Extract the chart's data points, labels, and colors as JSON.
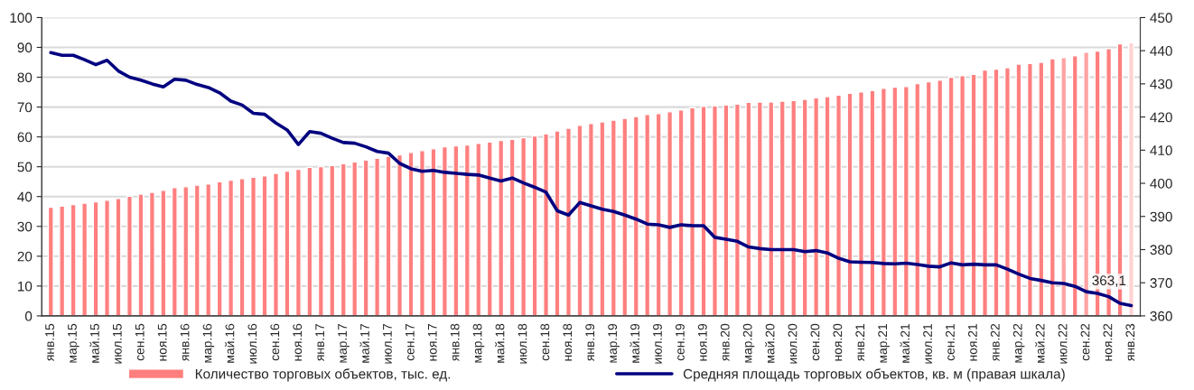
{
  "chart_data": {
    "type": "bar",
    "categories": [
      "янв.15",
      null,
      "мар.15",
      null,
      "май.15",
      null,
      "июл.15",
      null,
      "сен.15",
      null,
      "ноя.15",
      null,
      "янв.16",
      null,
      "мар.16",
      null,
      "май.16",
      null,
      "июл.16",
      null,
      "сен.16",
      null,
      "ноя.16",
      null,
      "янв.17",
      null,
      "мар.17",
      null,
      "май.17",
      null,
      "июл.17",
      null,
      "сен.17",
      null,
      "ноя.17",
      null,
      "янв.18",
      null,
      "мар.18",
      null,
      "май.18",
      null,
      "июл.18",
      null,
      "сен.18",
      null,
      "ноя.18",
      null,
      "янв.19",
      null,
      "мар.19",
      null,
      "май.19",
      null,
      "июл.19",
      null,
      "сен.19",
      null,
      "ноя.19",
      null,
      "янв.20",
      null,
      "мар.20",
      null,
      "май.20",
      null,
      "июл.20",
      null,
      "сен.20",
      null,
      "ноя.20",
      null,
      "янв.21",
      null,
      "мар.21",
      null,
      "май.21",
      null,
      "июл.21",
      null,
      "сен.21",
      null,
      "ноя.21",
      null,
      "янв.22",
      null,
      "мар.22",
      null,
      "май.22",
      null,
      "июл.22",
      null,
      "сен.22",
      null,
      "ноя.22",
      null,
      "янв.23"
    ],
    "series": [
      {
        "name": "Количество торговых объектов, тыс. ед.",
        "color": "#ff7f7f",
        "colors": [
          "#ff7f7f",
          "#ff7f7f",
          "#ff7f7f",
          "#ff7f7f",
          "#ff7f7f",
          "#ff7f7f",
          "#ff7f7f",
          "#ff7f7f",
          "#ff7f7f",
          "#ff7f7f",
          "#ff7f7f",
          "#ff7f7f",
          "#ff7f7f",
          "#ff7f7f",
          "#ff7f7f",
          "#ff7f7f",
          "#ff7f7f",
          "#ff7f7f",
          "#ff7f7f",
          "#ff7f7f",
          "#ff7f7f",
          "#ff7f7f",
          "#ff7f7f",
          "#ff7f7f",
          "#ff7f7f",
          "#ff7f7f",
          "#ff7f7f",
          "#ff7f7f",
          "#ff7f7f",
          "#ff7f7f",
          "#ff7f7f",
          "#ff7f7f",
          "#ff7f7f",
          "#ff7f7f",
          "#ff7f7f",
          "#ff7f7f",
          "#ff7f7f",
          "#ff7f7f",
          "#ff7f7f",
          "#ff7f7f",
          "#ff7f7f",
          "#ff7f7f",
          "#ff7f7f",
          "#ff7f7f",
          "#ff7f7f",
          "#ff7f7f",
          "#ff7f7f",
          "#ff7f7f",
          "#ff7f7f",
          "#ff7f7f",
          "#ff7f7f",
          "#ff7f7f",
          "#ff7f7f",
          "#ff7f7f",
          "#ff7f7f",
          "#ff7f7f",
          "#ff7f7f",
          "#ff7f7f",
          "#ff7f7f",
          "#ff7f7f",
          "#ff7f7f",
          "#ff7f7f",
          "#ff7f7f",
          "#ff7f7f",
          "#ff7f7f",
          "#ff7f7f",
          "#ff7f7f",
          "#ff7f7f",
          "#ff7f7f",
          "#ff7f7f",
          "#ff7f7f",
          "#ff7f7f",
          "#ff7f7f",
          "#ff7f7f",
          "#ff7f7f",
          "#ff7f7f",
          "#ff7f7f",
          "#ff7f7f",
          "#ff7f7f",
          "#ff7f7f",
          "#ff7f7f",
          "#ff7f7f",
          "#ff7f7f",
          "#ff7f7f",
          "#ff7f7f",
          "#ff7f7f",
          "#ff7f7f",
          "#ff7f7f",
          "#ff7f7f",
          "#ff7f7f",
          "#ffa3a3",
          "#ff7f7f",
          "#ffa3a3",
          "#ff7f7f",
          "#ff7f7f",
          "#ff7f7f",
          "#ffd3d3"
        ],
        "values": [
          36.4,
          36.8,
          37.3,
          37.8,
          38.2,
          38.8,
          39.4,
          40.1,
          40.8,
          41.4,
          42.1,
          43.0,
          43.3,
          43.8,
          44.2,
          45.0,
          45.5,
          46.0,
          46.5,
          46.9,
          47.8,
          48.5,
          49.1,
          49.8,
          50.0,
          50.4,
          51.0,
          51.6,
          52.2,
          52.8,
          53.5,
          54.0,
          54.8,
          55.4,
          56.0,
          56.7,
          57.0,
          57.3,
          57.8,
          58.3,
          58.8,
          59.2,
          59.7,
          60.3,
          61.0,
          62.0,
          62.9,
          63.9,
          64.5,
          65.0,
          65.6,
          66.2,
          66.8,
          67.5,
          67.8,
          68.4,
          69.0,
          69.8,
          70.2,
          70.4,
          70.7,
          71.0,
          71.6,
          71.7,
          71.7,
          72.0,
          72.2,
          72.6,
          73.1,
          73.5,
          74.0,
          74.6,
          75.1,
          75.5,
          76.3,
          76.7,
          76.9,
          77.9,
          78.5,
          79.0,
          80.0,
          80.5,
          81.0,
          82.4,
          82.7,
          83.2,
          84.4,
          84.6,
          85.0,
          86.2,
          86.6,
          87.2,
          88.4,
          88.8,
          89.6,
          91.2,
          91.6
        ]
      },
      {
        "name": "Средняя площадь торговых объектов, кв. м (правая шкала)",
        "type": "line",
        "axis": "y2",
        "color": "#000080",
        "values": [
          439.4,
          438.6,
          438.6,
          437.3,
          435.8,
          437.1,
          433.9,
          432.0,
          431.1,
          430.0,
          429.1,
          431.4,
          431.1,
          429.8,
          428.9,
          427.3,
          424.8,
          423.6,
          421.1,
          420.8,
          418.2,
          416.1,
          411.7,
          415.6,
          415.1,
          413.6,
          412.3,
          412.1,
          411.0,
          409.6,
          409.1,
          406.0,
          404.4,
          403.6,
          403.9,
          403.3,
          403.0,
          402.7,
          402.5,
          401.6,
          400.7,
          401.6,
          400.1,
          398.8,
          397.3,
          391.7,
          390.4,
          394.2,
          393.2,
          392.2,
          391.5,
          390.4,
          389.2,
          387.7,
          387.5,
          386.7,
          387.5,
          387.2,
          387.2,
          383.7,
          383.1,
          382.5,
          380.8,
          380.3,
          380.0,
          380.0,
          380.0,
          379.4,
          379.7,
          379.0,
          377.4,
          376.3,
          376.2,
          376.1,
          375.8,
          375.7,
          375.9,
          375.5,
          375.0,
          374.8,
          376.0,
          375.4,
          375.6,
          375.4,
          375.4,
          374.1,
          372.6,
          371.3,
          370.7,
          370.0,
          369.8,
          368.9,
          367.3,
          366.8,
          365.8,
          363.8,
          363.1
        ]
      }
    ],
    "ylim": [
      0,
      100
    ],
    "yticks": [
      0,
      10,
      20,
      30,
      40,
      50,
      60,
      70,
      80,
      90,
      100
    ],
    "y2lim": [
      360,
      450
    ],
    "y2ticks": [
      360,
      370,
      380,
      390,
      400,
      410,
      420,
      430,
      440,
      450
    ],
    "annotations": [
      "363,1"
    ],
    "grid": "y",
    "legend": "bottom",
    "line_style": "solid",
    "marker": "none"
  }
}
